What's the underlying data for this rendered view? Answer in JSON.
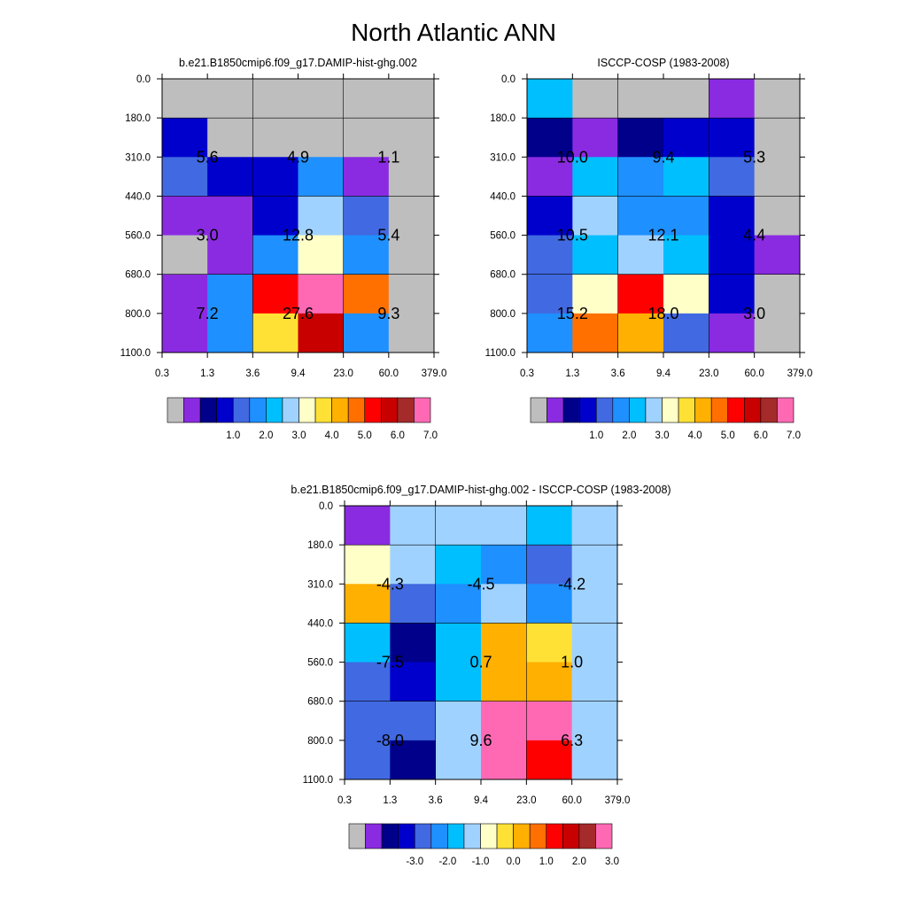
{
  "figure": {
    "title": "North Atlantic ANN"
  },
  "chart_data": [
    {
      "type": "heatmap",
      "title": "b.e21.B1850cmip6.f09_g17.DAMIP-hist-ghg.002",
      "x_ticks": [
        "0.3",
        "1.3",
        "3.6",
        "9.4",
        "23.0",
        "60.0",
        "379.0"
      ],
      "y_ticks": [
        "0.0",
        "180.0",
        "310.0",
        "440.0",
        "560.0",
        "680.0",
        "800.0",
        "1100.0"
      ],
      "colorbar": {
        "colors": [
          "#bebebe",
          "#8a2be2",
          "#00008b",
          "#0000cd",
          "#4169e1",
          "#1e90ff",
          "#00bfff",
          "#a0d2ff",
          "#ffffc8",
          "#ffe135",
          "#ffb000",
          "#ff7000",
          "#ff0000",
          "#c80000",
          "#a52a2a",
          "#ff69b4"
        ],
        "labels": [
          "1.0",
          "2.0",
          "3.0",
          "4.0",
          "5.0",
          "6.0",
          "7.0"
        ]
      },
      "cells": [
        [
          "#bebebe",
          "#bebebe",
          "#bebebe",
          "#bebebe",
          "#bebebe",
          "#bebebe"
        ],
        [
          "#0000cd",
          "#bebebe",
          "#bebebe",
          "#bebebe",
          "#bebebe",
          "#bebebe"
        ],
        [
          "#4169e1",
          "#0000cd",
          "#0000cd",
          "#1e90ff",
          "#8a2be2",
          "#bebebe"
        ],
        [
          "#8a2be2",
          "#8a2be2",
          "#0000cd",
          "#a0d2ff",
          "#4169e1",
          "#bebebe"
        ],
        [
          "#bebebe",
          "#8a2be2",
          "#1e90ff",
          "#ffffc8",
          "#1e90ff",
          "#bebebe"
        ],
        [
          "#8a2be2",
          "#1e90ff",
          "#ff0000",
          "#ff69b4",
          "#ff7000",
          "#bebebe"
        ],
        [
          "#8a2be2",
          "#1e90ff",
          "#ffe135",
          "#c80000",
          "#1e90ff",
          "#bebebe"
        ]
      ],
      "box_values": [
        [
          "5.6",
          "4.9",
          "1.1"
        ],
        [
          "3.0",
          "12.8",
          "5.4"
        ],
        [
          "7.2",
          "27.6",
          "9.3"
        ]
      ]
    },
    {
      "type": "heatmap",
      "title": "ISCCP-COSP (1983-2008)",
      "x_ticks": [
        "0.3",
        "1.3",
        "3.6",
        "9.4",
        "23.0",
        "60.0",
        "379.0"
      ],
      "y_ticks": [
        "0.0",
        "180.0",
        "310.0",
        "440.0",
        "560.0",
        "680.0",
        "800.0",
        "1100.0"
      ],
      "colorbar": {
        "colors": [
          "#bebebe",
          "#8a2be2",
          "#00008b",
          "#0000cd",
          "#4169e1",
          "#1e90ff",
          "#00bfff",
          "#a0d2ff",
          "#ffffc8",
          "#ffe135",
          "#ffb000",
          "#ff7000",
          "#ff0000",
          "#c80000",
          "#a52a2a",
          "#ff69b4"
        ],
        "labels": [
          "1.0",
          "2.0",
          "3.0",
          "4.0",
          "5.0",
          "6.0",
          "7.0"
        ]
      },
      "cells": [
        [
          "#00bfff",
          "#bebebe",
          "#bebebe",
          "#bebebe",
          "#8a2be2",
          "#bebebe"
        ],
        [
          "#00008b",
          "#8a2be2",
          "#00008b",
          "#0000cd",
          "#0000cd",
          "#bebebe"
        ],
        [
          "#8a2be2",
          "#00bfff",
          "#1e90ff",
          "#00bfff",
          "#4169e1",
          "#bebebe"
        ],
        [
          "#0000cd",
          "#a0d2ff",
          "#1e90ff",
          "#1e90ff",
          "#0000cd",
          "#bebebe"
        ],
        [
          "#4169e1",
          "#00bfff",
          "#a0d2ff",
          "#00bfff",
          "#0000cd",
          "#8a2be2"
        ],
        [
          "#4169e1",
          "#ffffc8",
          "#ff0000",
          "#ffffc8",
          "#0000cd",
          "#bebebe"
        ],
        [
          "#1e90ff",
          "#ff7000",
          "#ffb000",
          "#4169e1",
          "#8a2be2",
          "#bebebe"
        ]
      ],
      "box_values": [
        [
          "10.0",
          "9.4",
          "5.3"
        ],
        [
          "10.5",
          "12.1",
          "4.4"
        ],
        [
          "15.2",
          "18.0",
          "3.0"
        ]
      ]
    },
    {
      "type": "heatmap",
      "title": "b.e21.B1850cmip6.f09_g17.DAMIP-hist-ghg.002 - ISCCP-COSP (1983-2008)",
      "x_ticks": [
        "0.3",
        "1.3",
        "3.6",
        "9.4",
        "23.0",
        "60.0",
        "379.0"
      ],
      "y_ticks": [
        "0.0",
        "180.0",
        "310.0",
        "440.0",
        "560.0",
        "680.0",
        "800.0",
        "1100.0"
      ],
      "colorbar": {
        "colors": [
          "#bebebe",
          "#8a2be2",
          "#00008b",
          "#0000cd",
          "#4169e1",
          "#1e90ff",
          "#00bfff",
          "#a0d2ff",
          "#ffffc8",
          "#ffe135",
          "#ffb000",
          "#ff7000",
          "#ff0000",
          "#c80000",
          "#a52a2a",
          "#ff69b4"
        ],
        "labels": [
          "-3.0",
          "-2.0",
          "-1.0",
          "0.0",
          "1.0",
          "2.0",
          "3.0"
        ]
      },
      "cells": [
        [
          "#8a2be2",
          "#a0d2ff",
          "#a0d2ff",
          "#a0d2ff",
          "#00bfff",
          "#a0d2ff"
        ],
        [
          "#ffffc8",
          "#a0d2ff",
          "#00bfff",
          "#1e90ff",
          "#4169e1",
          "#a0d2ff"
        ],
        [
          "#ffb000",
          "#4169e1",
          "#1e90ff",
          "#a0d2ff",
          "#1e90ff",
          "#a0d2ff"
        ],
        [
          "#00bfff",
          "#00008b",
          "#00bfff",
          "#ffb000",
          "#ffe135",
          "#a0d2ff"
        ],
        [
          "#4169e1",
          "#0000cd",
          "#00bfff",
          "#ffb000",
          "#ffb000",
          "#a0d2ff"
        ],
        [
          "#4169e1",
          "#4169e1",
          "#a0d2ff",
          "#ff69b4",
          "#ff69b4",
          "#a0d2ff"
        ],
        [
          "#4169e1",
          "#00008b",
          "#a0d2ff",
          "#ff69b4",
          "#ff0000",
          "#a0d2ff"
        ]
      ],
      "box_values": [
        [
          "-4.3",
          "-4.5",
          "-4.2"
        ],
        [
          "-7.5",
          "0.7",
          "1.0"
        ],
        [
          "-8.0",
          "9.6",
          "6.3"
        ]
      ]
    }
  ]
}
